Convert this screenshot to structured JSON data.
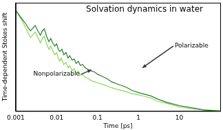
{
  "chart_data": {
    "type": "line",
    "title": "Solvation dynamics in water",
    "x_label": "Time [ps]",
    "y_label": "Time-dependent Stokes shift",
    "log": "x",
    "grid": false,
    "tick_labels": "x",
    "xlim": [
      0.001,
      100
    ],
    "xticks": [
      0.001,
      0.01,
      0.1,
      1,
      10
    ],
    "ylim": [
      0,
      1
    ],
    "series": [
      {
        "name": "Polarizable",
        "color": "#2a7a2a",
        "x": [
          0.001,
          0.0012,
          0.0015,
          0.0018,
          0.002,
          0.0023,
          0.0027,
          0.003,
          0.0035,
          0.004,
          0.0045,
          0.005,
          0.0057,
          0.0065,
          0.0072,
          0.008,
          0.009,
          0.01,
          0.011,
          0.012,
          0.0135,
          0.015,
          0.017,
          0.019,
          0.021,
          0.024,
          0.027,
          0.03,
          0.034,
          0.038,
          0.043,
          0.05,
          0.06,
          0.07,
          0.085,
          0.1,
          0.13,
          0.17,
          0.22,
          0.3,
          0.5,
          0.7,
          1,
          2,
          3,
          5,
          10,
          20,
          40,
          100
        ],
        "values": [
          0.93,
          0.89,
          0.84,
          0.8,
          0.77,
          0.74,
          0.77,
          0.79,
          0.74,
          0.7,
          0.74,
          0.76,
          0.69,
          0.64,
          0.67,
          0.63,
          0.6,
          0.62,
          0.57,
          0.55,
          0.57,
          0.52,
          0.54,
          0.49,
          0.51,
          0.47,
          0.48,
          0.44,
          0.46,
          0.42,
          0.43,
          0.4,
          0.38,
          0.37,
          0.36,
          0.34,
          0.32,
          0.3,
          0.27,
          0.25,
          0.22,
          0.19,
          0.17,
          0.14,
          0.11,
          0.08,
          0.05,
          0.03,
          0.01,
          0.0
        ]
      },
      {
        "name": "Nonpolarizable",
        "color": "#8ad35c",
        "x": [
          0.001,
          0.0012,
          0.0015,
          0.0018,
          0.002,
          0.0023,
          0.0026,
          0.003,
          0.0035,
          0.004,
          0.0045,
          0.005,
          0.0057,
          0.0065,
          0.0072,
          0.008,
          0.009,
          0.01,
          0.011,
          0.012,
          0.013,
          0.015,
          0.017,
          0.019,
          0.021,
          0.024,
          0.027,
          0.03,
          0.034,
          0.038,
          0.043,
          0.05,
          0.06,
          0.07,
          0.085,
          0.1,
          0.15,
          0.2,
          0.3,
          0.5,
          0.7,
          1,
          2,
          3,
          5,
          10,
          20,
          40,
          100
        ],
        "values": [
          0.93,
          0.88,
          0.82,
          0.76,
          0.72,
          0.68,
          0.7,
          0.73,
          0.68,
          0.63,
          0.67,
          0.69,
          0.62,
          0.57,
          0.6,
          0.56,
          0.52,
          0.54,
          0.49,
          0.46,
          0.49,
          0.43,
          0.45,
          0.4,
          0.42,
          0.37,
          0.39,
          0.35,
          0.37,
          0.33,
          0.34,
          0.31,
          0.3,
          0.28,
          0.27,
          0.26,
          0.24,
          0.22,
          0.2,
          0.18,
          0.16,
          0.15,
          0.12,
          0.09,
          0.07,
          0.04,
          0.02,
          0.01,
          0.0
        ]
      }
    ]
  }
}
